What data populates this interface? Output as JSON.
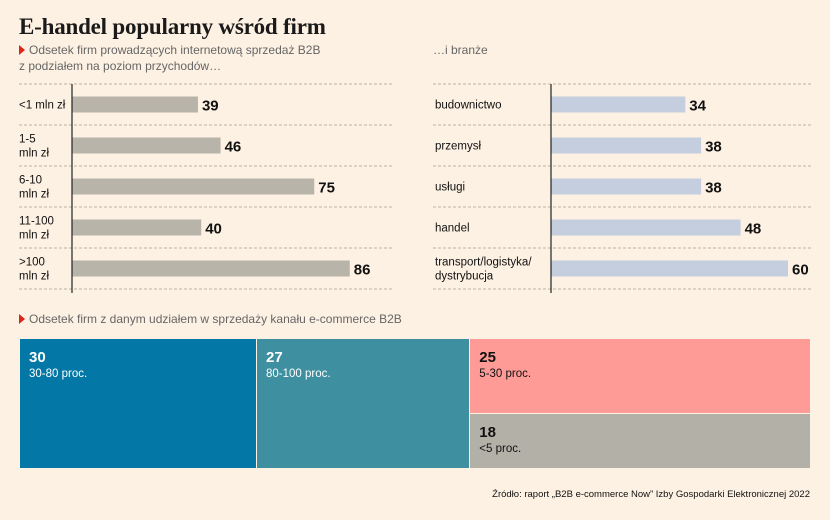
{
  "title": "E-handel popularny wśród firm",
  "subtitle_left_line1": "Odsetek firm prowadzących internetową sprzedaż B2B",
  "subtitle_left_line2": "z podziałem na poziom przychodów…",
  "subtitle_right": "…i branże",
  "subtitle_bottom": "Odsetek firm z danym udziałem w sprzedaży kanału e-commerce B2B",
  "source": "Źródło: raport „B2B e-commerce Now” Izby Gospodarki Elektronicznej 2022",
  "colors": {
    "bar_left": "#b8b4aa",
    "bar_right": "#c4cedf",
    "tile_1": "#0378a6",
    "tile_2": "#3e8fa0",
    "tile_3": "#fe9b97",
    "tile_4": "#b3b0a8",
    "accent": "#e0241c"
  },
  "chart_data": [
    {
      "type": "bar",
      "orientation": "horizontal",
      "categories": [
        "<1 mln zł",
        "1-5\nmln zł",
        "6-10\nmln zł",
        "11-100\nmln zł",
        ">100\nmln zł"
      ],
      "values": [
        39,
        46,
        75,
        40,
        86
      ],
      "xlim": [
        0,
        100
      ]
    },
    {
      "type": "bar",
      "orientation": "horizontal",
      "categories": [
        "budownictwo",
        "przemysł",
        "usługi",
        "handel",
        "transport/logistyka/\ndystrybucja"
      ],
      "values": [
        34,
        38,
        38,
        48,
        60
      ],
      "xlim": [
        0,
        80
      ]
    },
    {
      "type": "treemap",
      "items": [
        {
          "value": 30,
          "label": "30-80 proc."
        },
        {
          "value": 27,
          "label": "80-100 proc."
        },
        {
          "value": 25,
          "label": "5-30 proc."
        },
        {
          "value": 18,
          "label": "<5 proc."
        }
      ]
    }
  ]
}
